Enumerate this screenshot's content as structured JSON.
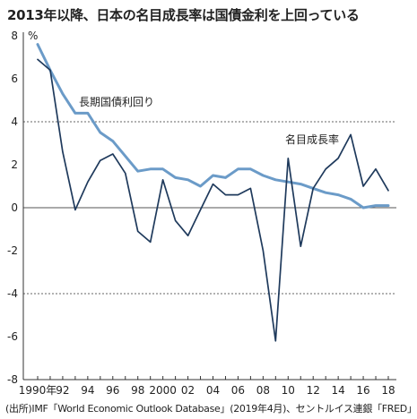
{
  "title": "2013年以降、日本の名目成長率は国債金利を上回っている",
  "source": "(出所)IMF「World Economic Outlook Database」(2019年4月)、セントルイス連銀「FRED」",
  "chart_data": {
    "type": "line",
    "ylabel": "%",
    "ylim": [
      -8,
      8
    ],
    "yticks": [
      -8,
      -6,
      -4,
      -2,
      0,
      2,
      4,
      6,
      8
    ],
    "gridlines": [
      -4,
      0,
      4
    ],
    "x_range": [
      1990,
      2018
    ],
    "x_ticks": [
      {
        "x": 1990,
        "label": "1990年"
      },
      {
        "x": 1992,
        "label": "92"
      },
      {
        "x": 1994,
        "label": "94"
      },
      {
        "x": 1996,
        "label": "96"
      },
      {
        "x": 1998,
        "label": "98"
      },
      {
        "x": 2000,
        "label": "2000"
      },
      {
        "x": 2002,
        "label": "02"
      },
      {
        "x": 2004,
        "label": "04"
      },
      {
        "x": 2006,
        "label": "06"
      },
      {
        "x": 2008,
        "label": "08"
      },
      {
        "x": 2010,
        "label": "10"
      },
      {
        "x": 2012,
        "label": "12"
      },
      {
        "x": 2014,
        "label": "14"
      },
      {
        "x": 2016,
        "label": "16"
      },
      {
        "x": 2018,
        "label": "18"
      }
    ],
    "x": [
      1990,
      1991,
      1992,
      1993,
      1994,
      1995,
      1996,
      1997,
      1998,
      1999,
      2000,
      2001,
      2002,
      2003,
      2004,
      2005,
      2006,
      2007,
      2008,
      2009,
      2010,
      2011,
      2012,
      2013,
      2014,
      2015,
      2016,
      2017,
      2018
    ],
    "series": [
      {
        "name": "長期国債利回り",
        "color": "#6b9bc8",
        "values": [
          7.6,
          6.4,
          5.3,
          4.4,
          4.4,
          3.5,
          3.1,
          2.4,
          1.7,
          1.8,
          1.8,
          1.4,
          1.3,
          1.0,
          1.5,
          1.4,
          1.8,
          1.8,
          1.5,
          1.3,
          1.2,
          1.1,
          0.9,
          0.7,
          0.6,
          0.4,
          0.0,
          0.1,
          0.1
        ]
      },
      {
        "name": "名目成長率",
        "color": "#1f3a5c",
        "values": [
          6.9,
          6.4,
          2.6,
          -0.1,
          1.2,
          2.2,
          2.5,
          1.6,
          -1.1,
          -1.6,
          1.3,
          -0.6,
          -1.3,
          -0.1,
          1.1,
          0.6,
          0.6,
          0.9,
          -2.0,
          -6.2,
          2.3,
          -1.8,
          0.9,
          1.8,
          2.3,
          3.4,
          1.0,
          1.8,
          0.8
        ]
      }
    ]
  }
}
